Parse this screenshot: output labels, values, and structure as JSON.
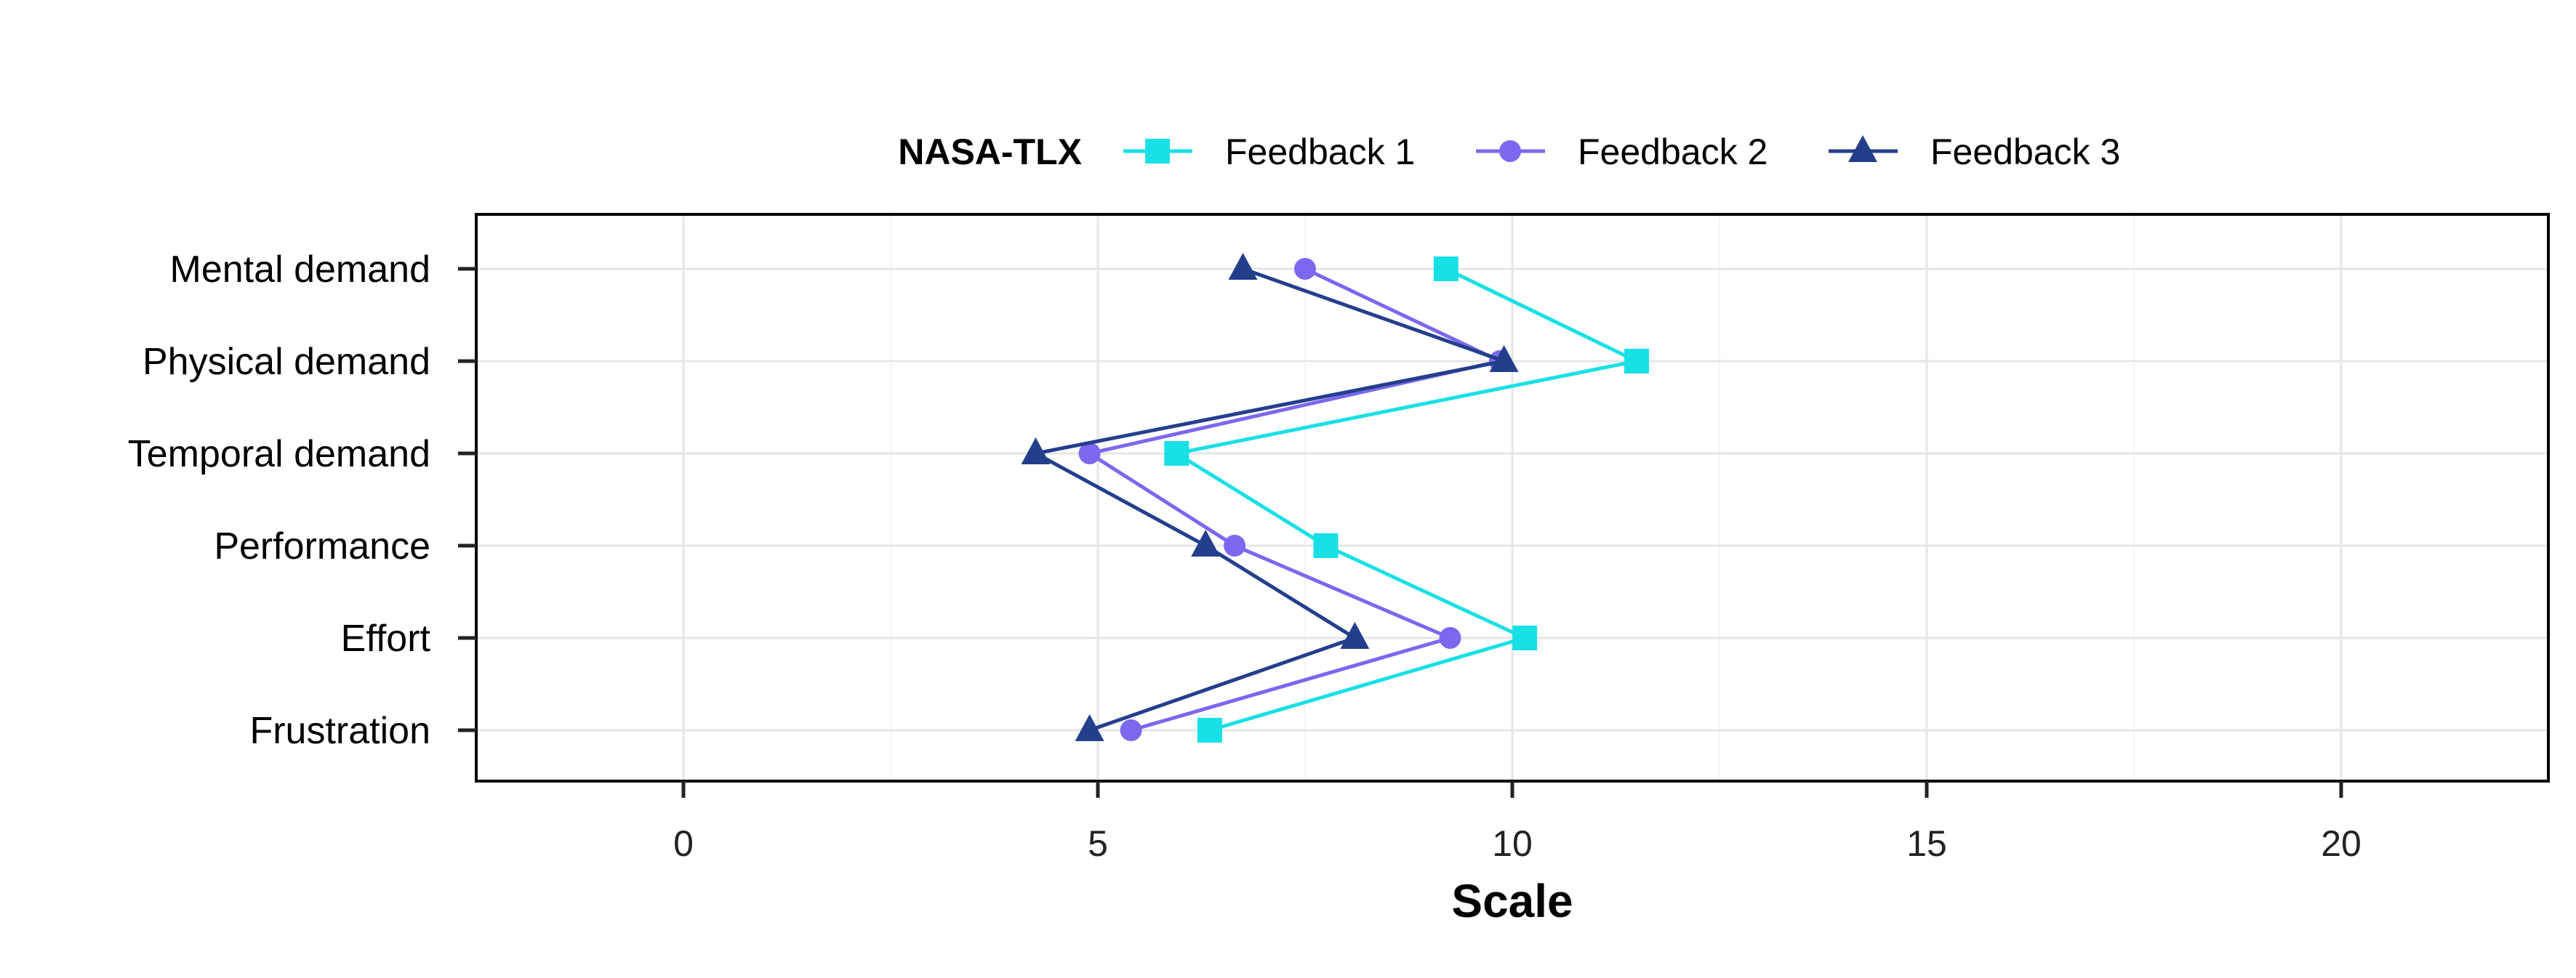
{
  "chart_data": {
    "type": "line",
    "orientation": "horizontal",
    "legend": {
      "title": "NASA-TLX",
      "position": "top"
    },
    "xlabel": "Scale",
    "ylabel": "",
    "xlim": [
      -2.5,
      22.5
    ],
    "x_ticks": [
      0,
      5,
      10,
      15,
      20
    ],
    "grid": true,
    "categories": [
      "Mental demand",
      "Physical demand",
      "Temporal demand",
      "Performance",
      "Effort",
      "Frustration"
    ],
    "series": [
      {
        "name": "Feedback 1",
        "marker": "square",
        "color": "#17E0E6",
        "values": [
          9.2,
          11.5,
          5.95,
          7.75,
          10.15,
          6.35
        ]
      },
      {
        "name": "Feedback 2",
        "marker": "circle",
        "color": "#7B68EE",
        "values": [
          7.5,
          9.85,
          4.9,
          6.65,
          9.25,
          5.4
        ]
      },
      {
        "name": "Feedback 3",
        "marker": "triangle",
        "color": "#233F8C",
        "values": [
          6.75,
          9.9,
          4.25,
          6.3,
          8.1,
          4.9
        ]
      }
    ]
  }
}
